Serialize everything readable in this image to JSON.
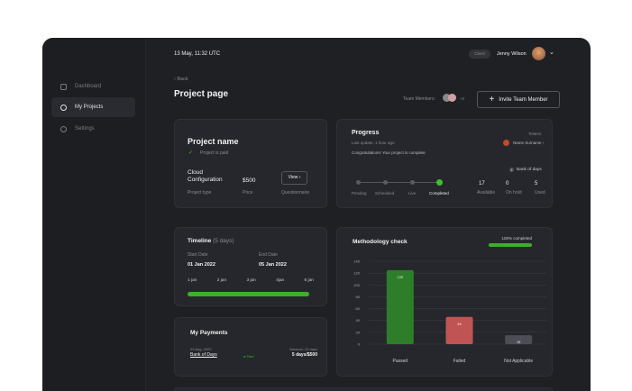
{
  "sidebar": {
    "items": [
      {
        "label": "Dashboard",
        "icon": "grid-icon"
      },
      {
        "label": "My Projects",
        "icon": "projects-icon",
        "active": true
      },
      {
        "label": "Settings",
        "icon": "gear-icon"
      }
    ]
  },
  "header": {
    "datetime": "13 May,  11:32 UTC",
    "role_badge": "Client",
    "user_name": "Jenny Wilson"
  },
  "page": {
    "back": "‹ Back",
    "title": "Project page",
    "team_label": "Team Members:",
    "team_extra": "+2",
    "invite": "Invite Team Member"
  },
  "project": {
    "title": "Project name",
    "paid": "Project is paid",
    "type_value": "Cloud Configuration",
    "type_label": "Project type",
    "price_value": "$500",
    "price_label": "Price",
    "view": "View ›",
    "questionnaire_label": "Questionnaire"
  },
  "progress": {
    "title": "Progress",
    "updated": "Last update: 1 hour ago",
    "message": "Congratulations! Your project is complete",
    "testers_label": "Testers",
    "tester": "Name Surname ›",
    "steps": [
      "Pending",
      "Scheduled",
      "Live",
      "Completed"
    ],
    "bank_label": "Bank of days",
    "stats": [
      {
        "value": "17",
        "label": "Available"
      },
      {
        "value": "0",
        "label": "On hold"
      },
      {
        "value": "5",
        "label": "Used"
      }
    ]
  },
  "timeline": {
    "title": "Timeline",
    "days": "(5 days)",
    "start_label": "Start Date",
    "start": "01 Jan 2022",
    "end_label": "End Date",
    "end": "05 Jan 2022",
    "ticks": [
      "1 jan",
      "2 jan",
      "3 jan",
      "4jan",
      "5 jan"
    ],
    "progress": 1.0
  },
  "payments": {
    "title": "My Payments",
    "date": "23 Aug, 2022",
    "name": "Bank of Days",
    "status": "Paid",
    "balance_label": "Balance: 22 days",
    "balance": "5 days/$500"
  },
  "methodology": {
    "title": "Methodology check",
    "completed": "100% completed",
    "progress": 1.0
  },
  "chart_data": {
    "type": "bar",
    "categories": [
      "Passed",
      "Failed",
      "Not Applicable"
    ],
    "values": [
      125,
      46,
      15
    ],
    "colors": [
      "#2e7d2a",
      "#c05454",
      "#4d4e55"
    ],
    "ylim": [
      0,
      140
    ],
    "yticks": [
      "0",
      "20",
      "40",
      "60",
      "80",
      "100",
      "120",
      "140"
    ],
    "grid": true
  }
}
